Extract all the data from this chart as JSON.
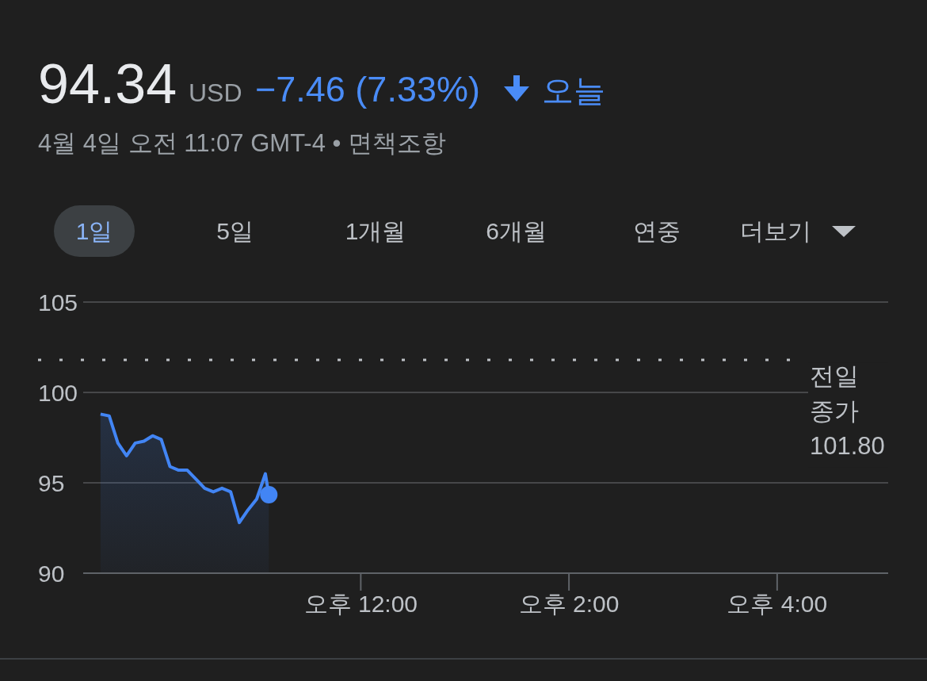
{
  "chart_data": {
    "type": "area",
    "title": "94.34",
    "subtitle": "4월 4일 오전 11:07 GMT-4 • 면책조항",
    "annotations": [
      "USD",
      "−7.46 (7.33%)",
      "오늘",
      "1일",
      "5일",
      "1개월",
      "6개월",
      "연중",
      "더보기"
    ],
    "series": [
      {
        "color": "#4285f4",
        "x": [
          "--04-04T09:30",
          "--04-04T09:35",
          "--04-04T09:40",
          "--04-04T09:45",
          "--04-04T09:50",
          "--04-04T09:55",
          "--04-04T10:00",
          "--04-04T10:05",
          "--04-04T10:10",
          "--04-04T10:15",
          "--04-04T10:20",
          "--04-04T10:25",
          "--04-04T10:30",
          "--04-04T10:35",
          "--04-04T10:40",
          "--04-04T10:45",
          "--04-04T10:50",
          "--04-04T10:55",
          "--04-04T11:00",
          "--04-04T11:05",
          "--04-04T11:07"
        ],
        "values": [
          98.8,
          98.7,
          97.2,
          96.5,
          97.2,
          97.3,
          97.6,
          97.4,
          95.9,
          95.7,
          95.7,
          95.2,
          94.7,
          94.5,
          94.7,
          94.5,
          92.8,
          93.5,
          94.1,
          95.5,
          94.34
        ]
      },
      {
        "type": "scatter",
        "color": "#4285f4",
        "marker": "circle",
        "x": [
          "--04-04T11:07"
        ],
        "values": [
          94.34
        ]
      }
    ],
    "xlim": [
      "--04-04T09:20",
      "--04-04T17:04"
    ],
    "xticks": [
      {
        "value": "--04-04T12:00",
        "label": "오후 12:00"
      },
      {
        "value": "--04-04T14:00",
        "label": "오후 2:00"
      },
      {
        "value": "--04-04T16:00",
        "label": "오후 4:00"
      }
    ],
    "ylim": [
      90,
      105
    ],
    "yticks": [
      90,
      95,
      100,
      105
    ],
    "grid": "y",
    "ref_lines": [
      {
        "axis": "y",
        "value": 101.8,
        "label": "전일 종가 101.80",
        "line_style": "dotted",
        "color": "#bdc1c6"
      }
    ]
  }
}
